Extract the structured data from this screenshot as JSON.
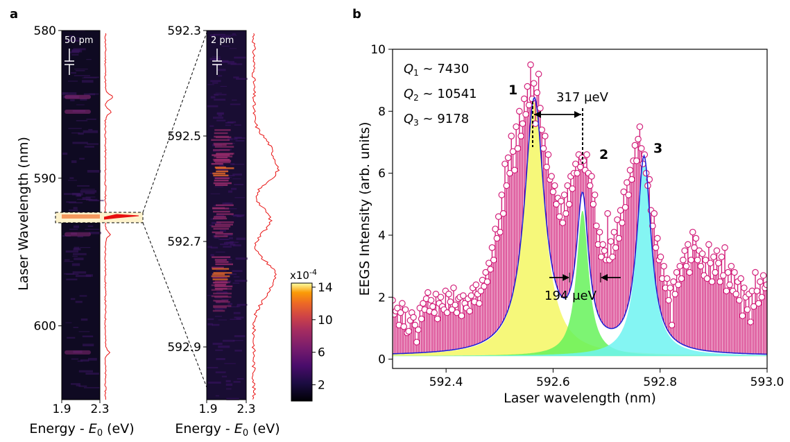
{
  "panel_a": {
    "letter": "a",
    "ylabel": "Laser Wavelength (nm)",
    "xlabel_prefix": "Energy - ",
    "xlabel_symbol": "E",
    "xlabel_sub": "0",
    "xlabel_suffix": " (eV)",
    "map1": {
      "scale_label": "50 pm",
      "ylim": [
        580,
        605
      ],
      "yticks": [
        "580",
        "590",
        "600"
      ],
      "xticks": [
        "1.9",
        "2.3"
      ],
      "bright_bands_nm": [
        {
          "center": 584.5,
          "strength": 0.45
        },
        {
          "center": 585.5,
          "strength": 0.35
        },
        {
          "center": 592.7,
          "strength": 1.0
        },
        {
          "center": 593.8,
          "strength": 0.3
        },
        {
          "center": 601.8,
          "strength": 0.25
        }
      ]
    },
    "map2": {
      "scale_label": "2 pm",
      "ylim": [
        592.3,
        593.0
      ],
      "yticks": [
        "592.3",
        "592.5",
        "592.7",
        "592.9"
      ],
      "xticks": [
        "1.9",
        "2.3"
      ]
    },
    "colorbar": {
      "multiplier": "x10",
      "multiplier_exp": "-4",
      "ticks": [
        "14",
        "10",
        "6",
        "2"
      ],
      "range": [
        0,
        14.5
      ]
    }
  },
  "chart_data": {
    "type": "scatter",
    "panel_letter": "b",
    "xlabel": "Laser wavelength (nm)",
    "ylabel": "EEGS Intensity (arb. units)",
    "xlim": [
      592.3,
      593.0
    ],
    "ylim": [
      -0.3,
      10
    ],
    "xticks": [
      "592.4",
      "592.6",
      "592.8",
      "593.0"
    ],
    "yticks": [
      "0",
      "2",
      "4",
      "6",
      "8",
      "10"
    ],
    "peaks": [
      {
        "label": "1",
        "center": 592.565,
        "amplitude": 8.2,
        "gamma": 0.045,
        "color": "#f4f763"
      },
      {
        "label": "2",
        "center": 592.655,
        "amplitude": 4.7,
        "gamma": 0.0275,
        "color": "#66f25a"
      },
      {
        "label": "3",
        "center": 592.77,
        "amplitude": 6.3,
        "gamma": 0.032,
        "color": "#6ff3f1"
      }
    ],
    "baseline": 0.1,
    "q_factors": [
      {
        "sym": "Q",
        "sub": "1",
        "value": " ~ 7430"
      },
      {
        "sym": "Q",
        "sub": "2",
        "value": " ~ 10541"
      },
      {
        "sym": "Q",
        "sub": "3",
        "value": " ~ 9178"
      }
    ],
    "splitting_label": "317 μeV",
    "linewidth_label": "194 μeV",
    "data_points": [
      [
        592.3,
        1.9
      ],
      [
        592.303,
        1.45
      ],
      [
        592.306,
        1.55
      ],
      [
        592.309,
        1.65
      ],
      [
        592.312,
        1.1
      ],
      [
        592.315,
        1.5
      ],
      [
        592.318,
        1.8
      ],
      [
        592.321,
        1.05
      ],
      [
        592.324,
        1.6
      ],
      [
        592.327,
        0.85
      ],
      [
        592.33,
        0.9
      ],
      [
        592.333,
        1.25
      ],
      [
        592.336,
        1.5
      ],
      [
        592.339,
        1.35
      ],
      [
        592.342,
        1.1
      ],
      [
        592.345,
        0.55
      ],
      [
        592.348,
        0.95
      ],
      [
        592.351,
        1.65
      ],
      [
        592.354,
        1.3
      ],
      [
        592.357,
        1.8
      ],
      [
        592.36,
        1.6
      ],
      [
        592.363,
        1.95
      ],
      [
        592.366,
        2.15
      ],
      [
        592.369,
        1.55
      ],
      [
        592.372,
        1.9
      ],
      [
        592.375,
        1.7
      ],
      [
        592.378,
        1.5
      ],
      [
        592.381,
        2.1
      ],
      [
        592.384,
        1.3
      ],
      [
        592.387,
        1.8
      ],
      [
        592.39,
        2.0
      ],
      [
        592.393,
        1.7
      ],
      [
        592.396,
        1.6
      ],
      [
        592.399,
        2.2
      ],
      [
        592.402,
        1.5
      ],
      [
        592.405,
        2.1
      ],
      [
        592.408,
        1.85
      ],
      [
        592.411,
        1.6
      ],
      [
        592.414,
        2.3
      ],
      [
        592.417,
        1.75
      ],
      [
        592.42,
        1.5
      ],
      [
        592.423,
        1.95
      ],
      [
        592.426,
        2.0
      ],
      [
        592.429,
        1.4
      ],
      [
        592.432,
        2.05
      ],
      [
        592.435,
        1.8
      ],
      [
        592.438,
        1.65
      ],
      [
        592.441,
        1.95
      ],
      [
        592.444,
        1.55
      ],
      [
        592.447,
        2.05
      ],
      [
        592.45,
        2.3
      ],
      [
        592.453,
        1.85
      ],
      [
        592.456,
        2.4
      ],
      [
        592.459,
        2.1
      ],
      [
        592.462,
        1.8
      ],
      [
        592.465,
        2.2
      ],
      [
        592.468,
        2.55
      ],
      [
        592.471,
        2.35
      ],
      [
        592.474,
        2.8
      ],
      [
        592.477,
        2.5
      ],
      [
        592.48,
        3.1
      ],
      [
        592.483,
        2.9
      ],
      [
        592.486,
        3.6
      ],
      [
        592.489,
        3.2
      ],
      [
        592.492,
        4.2
      ],
      [
        592.495,
        3.9
      ],
      [
        592.498,
        4.6
      ],
      [
        592.501,
        4.1
      ],
      [
        592.504,
        5.3
      ],
      [
        592.507,
        4.7
      ],
      [
        592.51,
        6.3
      ],
      [
        592.513,
        5.6
      ],
      [
        592.516,
        6.5
      ],
      [
        592.519,
        6.0
      ],
      [
        592.522,
        7.2
      ],
      [
        592.525,
        6.7
      ],
      [
        592.528,
        6.1
      ],
      [
        592.531,
        7.5
      ],
      [
        592.534,
        6.8
      ],
      [
        592.537,
        8.0
      ],
      [
        592.54,
        7.2
      ],
      [
        592.543,
        7.6
      ],
      [
        592.546,
        8.4
      ],
      [
        592.549,
        7.9
      ],
      [
        592.552,
        8.8
      ],
      [
        592.555,
        8.2
      ],
      [
        592.558,
        9.5
      ],
      [
        592.561,
        8.4
      ],
      [
        592.564,
        8.9
      ],
      [
        592.567,
        7.6
      ],
      [
        592.57,
        8.6
      ],
      [
        592.573,
        9.2
      ],
      [
        592.576,
        8.1
      ],
      [
        592.579,
        7.4
      ],
      [
        592.582,
        6.8
      ],
      [
        592.585,
        7.2
      ],
      [
        592.588,
        6.2
      ],
      [
        592.591,
        6.6
      ],
      [
        592.594,
        5.8
      ],
      [
        592.597,
        5.9
      ],
      [
        592.6,
        5.4
      ],
      [
        592.603,
        5.6
      ],
      [
        592.606,
        5.0
      ],
      [
        592.609,
        5.2
      ],
      [
        592.612,
        4.6
      ],
      [
        592.615,
        5.1
      ],
      [
        592.618,
        4.4
      ],
      [
        592.621,
        5.3
      ],
      [
        592.624,
        4.7
      ],
      [
        592.627,
        5.6
      ],
      [
        592.63,
        5.0
      ],
      [
        592.633,
        5.9
      ],
      [
        592.636,
        5.5
      ],
      [
        592.639,
        6.0
      ],
      [
        592.642,
        6.3
      ],
      [
        592.645,
        6.0
      ],
      [
        592.648,
        6.6
      ],
      [
        592.651,
        6.2
      ],
      [
        592.654,
        6.5
      ],
      [
        592.657,
        6.4
      ],
      [
        592.66,
        6.1
      ],
      [
        592.663,
        6.6
      ],
      [
        592.666,
        6.0
      ],
      [
        592.669,
        5.6
      ],
      [
        592.672,
        5.9
      ],
      [
        592.675,
        5.0
      ],
      [
        592.678,
        5.3
      ],
      [
        592.681,
        4.3
      ],
      [
        592.684,
        3.7
      ],
      [
        592.687,
        4.1
      ],
      [
        592.69,
        3.3
      ],
      [
        592.693,
        3.7
      ],
      [
        592.696,
        3.5
      ],
      [
        592.699,
        3.2
      ],
      [
        592.702,
        4.7
      ],
      [
        592.705,
        3.2
      ],
      [
        592.708,
        3.8
      ],
      [
        592.711,
        3.3
      ],
      [
        592.714,
        4.1
      ],
      [
        592.717,
        3.6
      ],
      [
        592.72,
        4.5
      ],
      [
        592.723,
        3.9
      ],
      [
        592.726,
        4.8
      ],
      [
        592.729,
        4.4
      ],
      [
        592.732,
        5.4
      ],
      [
        592.735,
        4.9
      ],
      [
        592.738,
        5.7
      ],
      [
        592.741,
        5.3
      ],
      [
        592.744,
        6.1
      ],
      [
        592.747,
        5.8
      ],
      [
        592.75,
        6.4
      ],
      [
        592.753,
        6.9
      ],
      [
        592.756,
        6.4
      ],
      [
        592.759,
        7.1
      ],
      [
        592.762,
        7.5
      ],
      [
        592.765,
        6.8
      ],
      [
        592.768,
        6.3
      ],
      [
        592.771,
        6.6
      ],
      [
        592.774,
        6.0
      ],
      [
        592.777,
        5.6
      ],
      [
        592.78,
        5.8
      ],
      [
        592.783,
        4.8
      ],
      [
        592.786,
        4.3
      ],
      [
        592.789,
        4.7
      ],
      [
        592.792,
        3.6
      ],
      [
        592.795,
        3.9
      ],
      [
        592.798,
        3.2
      ],
      [
        592.801,
        3.3
      ],
      [
        592.804,
        2.6
      ],
      [
        592.807,
        3.0
      ],
      [
        592.81,
        2.3
      ],
      [
        592.813,
        2.6
      ],
      [
        592.816,
        1.9
      ],
      [
        592.819,
        2.3
      ],
      [
        592.822,
        1.1
      ],
      [
        592.825,
        2.5
      ],
      [
        592.828,
        2.1
      ],
      [
        592.831,
        2.8
      ],
      [
        592.834,
        2.4
      ],
      [
        592.837,
        3.0
      ],
      [
        592.84,
        2.6
      ],
      [
        592.843,
        3.2
      ],
      [
        592.846,
        3.5
      ],
      [
        592.849,
        3.0
      ],
      [
        592.852,
        3.7
      ],
      [
        592.855,
        2.8
      ],
      [
        592.858,
        3.2
      ],
      [
        592.861,
        4.1
      ],
      [
        592.864,
        3.6
      ],
      [
        592.867,
        3.9
      ],
      [
        592.87,
        3.2
      ],
      [
        592.873,
        3.5
      ],
      [
        592.876,
        3.0
      ],
      [
        592.879,
        3.4
      ],
      [
        592.882,
        2.7
      ],
      [
        592.885,
        3.2
      ],
      [
        592.888,
        2.6
      ],
      [
        592.891,
        3.7
      ],
      [
        592.894,
        3.1
      ],
      [
        592.897,
        2.5
      ],
      [
        592.9,
        3.3
      ],
      [
        592.903,
        2.8
      ],
      [
        592.906,
        3.5
      ],
      [
        592.909,
        3.1
      ],
      [
        592.912,
        2.5
      ],
      [
        592.915,
        3.3
      ],
      [
        592.918,
        2.7
      ],
      [
        592.921,
        3.6
      ],
      [
        592.924,
        2.2
      ],
      [
        592.927,
        2.8
      ],
      [
        592.93,
        2.4
      ],
      [
        592.933,
        3.0
      ],
      [
        592.936,
        2.2
      ],
      [
        592.939,
        2.8
      ],
      [
        592.942,
        2.1
      ],
      [
        592.945,
        2.5
      ],
      [
        592.948,
        1.9
      ],
      [
        592.951,
        2.6
      ],
      [
        592.954,
        1.4
      ],
      [
        592.957,
        2.3
      ],
      [
        592.96,
        2.0
      ],
      [
        592.963,
        1.6
      ],
      [
        592.966,
        2.1
      ],
      [
        592.969,
        1.2
      ],
      [
        592.972,
        2.2
      ],
      [
        592.975,
        1.7
      ],
      [
        592.978,
        2.8
      ],
      [
        592.981,
        2.2
      ],
      [
        592.984,
        1.8
      ],
      [
        592.987,
        2.5
      ],
      [
        592.99,
        2.0
      ],
      [
        592.993,
        2.7
      ],
      [
        592.996,
        2.3
      ],
      [
        592.999,
        2.4
      ]
    ]
  }
}
